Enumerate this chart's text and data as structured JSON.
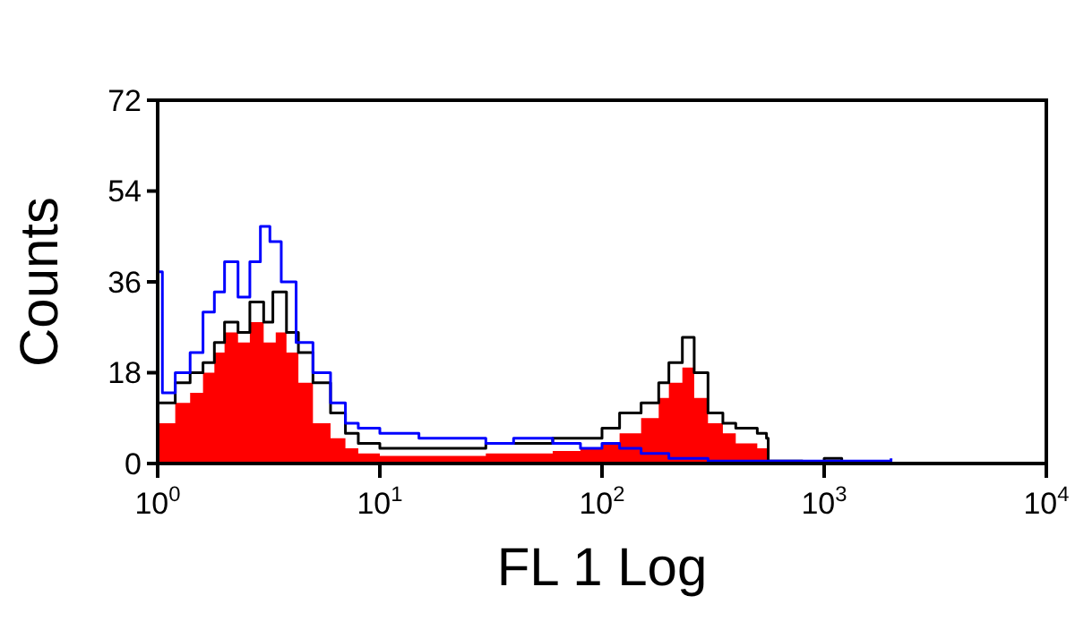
{
  "chart_data": {
    "type": "step",
    "xlabel": "FL 1 Log",
    "ylabel": "Counts",
    "log": "x",
    "xlim": [
      1,
      10000
    ],
    "ylim": [
      0,
      72
    ],
    "xticks": [
      {
        "value": 1,
        "label": "10$^{0}$"
      },
      {
        "value": 10,
        "label": "10$^{1}$"
      },
      {
        "value": 100,
        "label": "10$^{2}$"
      },
      {
        "value": 1000,
        "label": "10$^{3}$"
      },
      {
        "value": 10000,
        "label": "10$^{4}$"
      }
    ],
    "yticks": [
      0,
      18,
      36,
      54,
      72
    ],
    "grid": false,
    "series": [
      {
        "type": "area",
        "color": "#ff0000",
        "x": [
          1,
          1.2,
          1.4,
          1.6,
          1.8,
          2,
          2.3,
          2.6,
          3,
          3.4,
          3.8,
          4.3,
          5,
          6,
          7,
          8,
          10,
          15,
          20,
          30,
          40,
          60,
          80,
          100,
          120,
          150,
          180,
          200,
          230,
          260,
          300,
          350,
          400,
          500,
          550,
          560
        ],
        "values": [
          8,
          12,
          14,
          18,
          22,
          26,
          24,
          28,
          24,
          26,
          22,
          16,
          8,
          5,
          3,
          2,
          1.5,
          1.5,
          1.5,
          2,
          2,
          2.5,
          3,
          4,
          6,
          9,
          13,
          16,
          19,
          13,
          8,
          6,
          4,
          3,
          3,
          0
        ]
      },
      {
        "color": "#000000",
        "x": [
          1,
          1.2,
          1.4,
          1.6,
          1.8,
          2,
          2.3,
          2.6,
          3,
          3.3,
          3.8,
          4.3,
          5,
          6,
          7,
          8,
          10,
          15,
          20,
          30,
          40,
          60,
          80,
          100,
          120,
          150,
          180,
          200,
          230,
          260,
          300,
          350,
          400,
          500,
          550,
          560,
          800,
          1000,
          1200
        ],
        "values": [
          12,
          16,
          18,
          20,
          24,
          28,
          26,
          32,
          28,
          34,
          26,
          22,
          16,
          10,
          6,
          4,
          3,
          3,
          3,
          4,
          4,
          5,
          5,
          7,
          10,
          12,
          16,
          20,
          25,
          18,
          10,
          8,
          7,
          6,
          5,
          0.5,
          0.3,
          1,
          0.3
        ]
      },
      {
        "color": "#0000ff",
        "x": [
          1,
          1.05,
          1.2,
          1.4,
          1.6,
          1.8,
          2,
          2.3,
          2.6,
          2.9,
          3.2,
          3.6,
          4.2,
          5,
          6,
          7,
          8,
          10,
          15,
          20,
          30,
          40,
          60,
          80,
          100,
          120,
          150,
          200,
          300,
          400,
          2000
        ],
        "values": [
          38,
          14,
          18,
          22,
          30,
          34,
          40,
          33,
          40,
          47,
          44,
          36,
          24,
          18,
          12,
          8,
          7,
          6,
          5,
          5,
          4,
          5,
          4,
          3,
          4,
          3,
          2,
          1,
          0.5,
          0.5,
          1
        ]
      }
    ]
  }
}
